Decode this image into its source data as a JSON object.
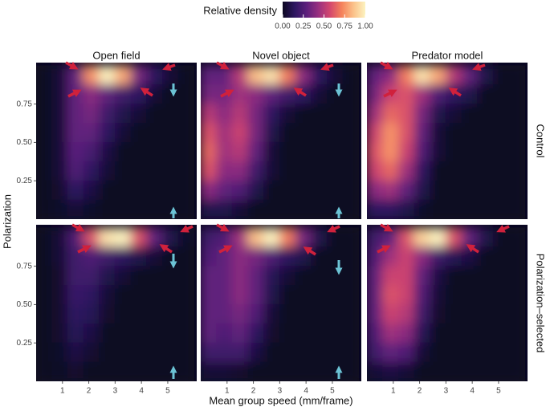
{
  "chart_data": {
    "type": "heatmap",
    "legend_title": "Relative density",
    "colorscale": [
      "#0c0821",
      "#2d1660",
      "#5b1f7c",
      "#962f80",
      "#d3476e",
      "#f5825b",
      "#fbc28a",
      "#fcf3c0"
    ],
    "colorbar_ticks": [
      {
        "value": 0,
        "label": "0.00"
      },
      0.25,
      {
        "value": 0.5,
        "label": "0.50"
      },
      0.75,
      {
        "value": 1,
        "label": "1.00"
      }
    ],
    "columns": [
      "Open field",
      "Novel object",
      "Predator model"
    ],
    "rows": [
      "Control",
      "Polarization–selected"
    ],
    "xlabel": "Mean group speed (mm/frame)",
    "ylabel": "Polarization",
    "xlim": [
      0,
      6.1
    ],
    "ylim": [
      0,
      1.02
    ],
    "xticks": [
      1,
      2,
      3,
      4,
      5
    ],
    "yticks": [
      0.25,
      {
        "value": 0.5,
        "label": "0.50"
      },
      0.75
    ],
    "x": [
      0.3,
      0.9,
      1.5,
      2.1,
      2.7,
      3.3,
      3.9,
      4.5,
      5.1,
      5.7
    ],
    "y": [
      0.9375,
      0.8125,
      0.6875,
      0.5625,
      0.4375,
      0.3125,
      0.1875,
      0.0625
    ],
    "panels": [
      [
        [
          [
            0,
            0.05,
            0.3,
            0.75,
            1.0,
            0.8,
            0.35,
            0.15,
            0.05,
            0
          ],
          [
            0,
            0.05,
            0.3,
            0.4,
            0.3,
            0.2,
            0.15,
            0.05,
            0,
            0
          ],
          [
            0,
            0.05,
            0.3,
            0.35,
            0.2,
            0.1,
            0.05,
            0,
            0,
            0
          ],
          [
            0,
            0.05,
            0.3,
            0.3,
            0.15,
            0.05,
            0,
            0,
            0,
            0
          ],
          [
            0,
            0.05,
            0.28,
            0.22,
            0.08,
            0,
            0,
            0,
            0,
            0
          ],
          [
            0,
            0.05,
            0.25,
            0.15,
            0.05,
            0,
            0,
            0,
            0,
            0
          ],
          [
            0,
            0.03,
            0.15,
            0.08,
            0,
            0,
            0,
            0,
            0,
            0
          ],
          [
            0,
            0.02,
            0.05,
            0.02,
            0,
            0,
            0,
            0,
            0,
            0
          ]
        ],
        [
          [
            0.3,
            0.3,
            0.5,
            0.85,
            0.95,
            0.7,
            0.4,
            0.15,
            0.05,
            0
          ],
          [
            0.35,
            0.35,
            0.45,
            0.4,
            0.3,
            0.2,
            0.15,
            0.05,
            0,
            0
          ],
          [
            0.5,
            0.4,
            0.5,
            0.35,
            0.15,
            0.05,
            0,
            0,
            0,
            0
          ],
          [
            0.6,
            0.45,
            0.55,
            0.35,
            0.1,
            0,
            0,
            0,
            0,
            0
          ],
          [
            0.65,
            0.45,
            0.5,
            0.3,
            0.05,
            0,
            0,
            0,
            0,
            0
          ],
          [
            0.6,
            0.4,
            0.4,
            0.2,
            0.05,
            0,
            0,
            0,
            0,
            0
          ],
          [
            0.4,
            0.3,
            0.25,
            0.1,
            0,
            0,
            0,
            0,
            0,
            0
          ],
          [
            0.1,
            0.1,
            0.05,
            0,
            0,
            0,
            0,
            0,
            0,
            0
          ]
        ],
        [
          [
            0.3,
            0.4,
            0.7,
            0.95,
            0.8,
            0.5,
            0.3,
            0.1,
            0,
            0
          ],
          [
            0.35,
            0.55,
            0.6,
            0.45,
            0.25,
            0.15,
            0.1,
            0,
            0,
            0
          ],
          [
            0.45,
            0.65,
            0.6,
            0.35,
            0.1,
            0.05,
            0,
            0,
            0,
            0
          ],
          [
            0.55,
            0.75,
            0.6,
            0.3,
            0.05,
            0,
            0,
            0,
            0,
            0
          ],
          [
            0.6,
            0.75,
            0.55,
            0.25,
            0.05,
            0,
            0,
            0,
            0,
            0
          ],
          [
            0.55,
            0.65,
            0.45,
            0.15,
            0,
            0,
            0,
            0,
            0,
            0
          ],
          [
            0.4,
            0.45,
            0.3,
            0.1,
            0,
            0,
            0,
            0,
            0,
            0
          ],
          [
            0.15,
            0.15,
            0.1,
            0.02,
            0,
            0,
            0,
            0,
            0,
            0
          ]
        ]
      ],
      [
        [
          [
            0,
            0.05,
            0.25,
            0.6,
            0.95,
            1.0,
            0.6,
            0.3,
            0.1,
            0.02
          ],
          [
            0,
            0.05,
            0.2,
            0.25,
            0.2,
            0.15,
            0.1,
            0.05,
            0,
            0
          ],
          [
            0,
            0.03,
            0.2,
            0.2,
            0.1,
            0.05,
            0,
            0,
            0,
            0
          ],
          [
            0,
            0.03,
            0.18,
            0.15,
            0.05,
            0,
            0,
            0,
            0,
            0
          ],
          [
            0,
            0.03,
            0.15,
            0.12,
            0.03,
            0,
            0,
            0,
            0,
            0
          ],
          [
            0,
            0.03,
            0.12,
            0.08,
            0,
            0,
            0,
            0,
            0,
            0
          ],
          [
            0,
            0.02,
            0.08,
            0.04,
            0,
            0,
            0,
            0,
            0,
            0
          ],
          [
            0,
            0.01,
            0.03,
            0,
            0,
            0,
            0,
            0,
            0,
            0
          ]
        ],
        [
          [
            0.2,
            0.25,
            0.45,
            0.85,
            1.0,
            0.7,
            0.35,
            0.1,
            0,
            0
          ],
          [
            0.25,
            0.3,
            0.4,
            0.35,
            0.25,
            0.15,
            0.1,
            0,
            0,
            0
          ],
          [
            0.3,
            0.3,
            0.4,
            0.3,
            0.12,
            0.05,
            0,
            0,
            0,
            0
          ],
          [
            0.3,
            0.3,
            0.4,
            0.3,
            0.1,
            0,
            0,
            0,
            0,
            0
          ],
          [
            0.3,
            0.3,
            0.35,
            0.25,
            0.05,
            0,
            0,
            0,
            0,
            0
          ],
          [
            0.3,
            0.25,
            0.3,
            0.15,
            0.03,
            0,
            0,
            0,
            0,
            0
          ],
          [
            0.2,
            0.2,
            0.2,
            0.08,
            0,
            0,
            0,
            0,
            0,
            0
          ],
          [
            0.05,
            0.05,
            0.03,
            0,
            0,
            0,
            0,
            0,
            0,
            0
          ]
        ],
        [
          [
            0.2,
            0.3,
            0.6,
            0.9,
            1.0,
            0.6,
            0.3,
            0.1,
            0,
            0
          ],
          [
            0.25,
            0.45,
            0.55,
            0.4,
            0.2,
            0.12,
            0.08,
            0,
            0,
            0
          ],
          [
            0.3,
            0.55,
            0.55,
            0.3,
            0.08,
            0,
            0,
            0,
            0,
            0
          ],
          [
            0.3,
            0.6,
            0.55,
            0.25,
            0.05,
            0,
            0,
            0,
            0,
            0
          ],
          [
            0.3,
            0.55,
            0.5,
            0.2,
            0.03,
            0,
            0,
            0,
            0,
            0
          ],
          [
            0.25,
            0.45,
            0.4,
            0.12,
            0,
            0,
            0,
            0,
            0,
            0
          ],
          [
            0.2,
            0.3,
            0.25,
            0.05,
            0,
            0,
            0,
            0,
            0,
            0
          ],
          [
            0.05,
            0.08,
            0.05,
            0,
            0,
            0,
            0,
            0,
            0,
            0
          ]
        ]
      ]
    ]
  }
}
